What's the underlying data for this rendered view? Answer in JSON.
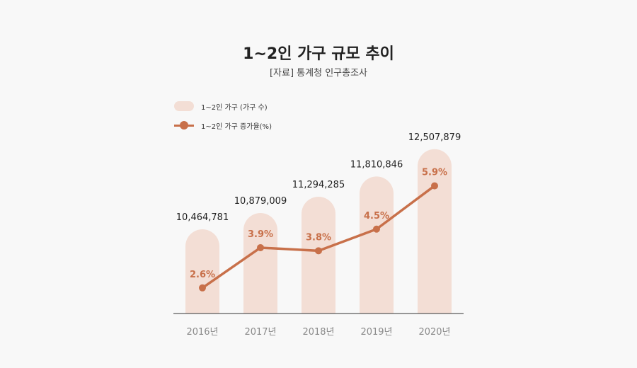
{
  "chart_data": {
    "type": "bar",
    "title": "1~2인 가구 규모 추이",
    "subtitle": "[자료] 통계청 인구총조사",
    "categories": [
      "2016년",
      "2017년",
      "2018년",
      "2019년",
      "2020년"
    ],
    "series": [
      {
        "name": "1~2인 가구 (가구 수)",
        "kind": "bar",
        "values": [
          10464781,
          10879009,
          11294285,
          11810846,
          12507879
        ],
        "labels": [
          "10,464,781",
          "10,879,009",
          "11,294,285",
          "11,810,846",
          "12,507,879"
        ]
      },
      {
        "name": "1~2인 가구 증가율(%)",
        "kind": "line",
        "values": [
          2.6,
          3.9,
          3.8,
          4.5,
          5.9
        ],
        "labels": [
          "2.6%",
          "3.9%",
          "3.8%",
          "4.5%",
          "5.9%"
        ]
      }
    ],
    "xlabel": "",
    "ylabel": "",
    "legend_position": "top-left",
    "grid": false
  },
  "colors": {
    "bar": "#f3ded5",
    "line": "#c8704a",
    "axis": "#333333"
  }
}
